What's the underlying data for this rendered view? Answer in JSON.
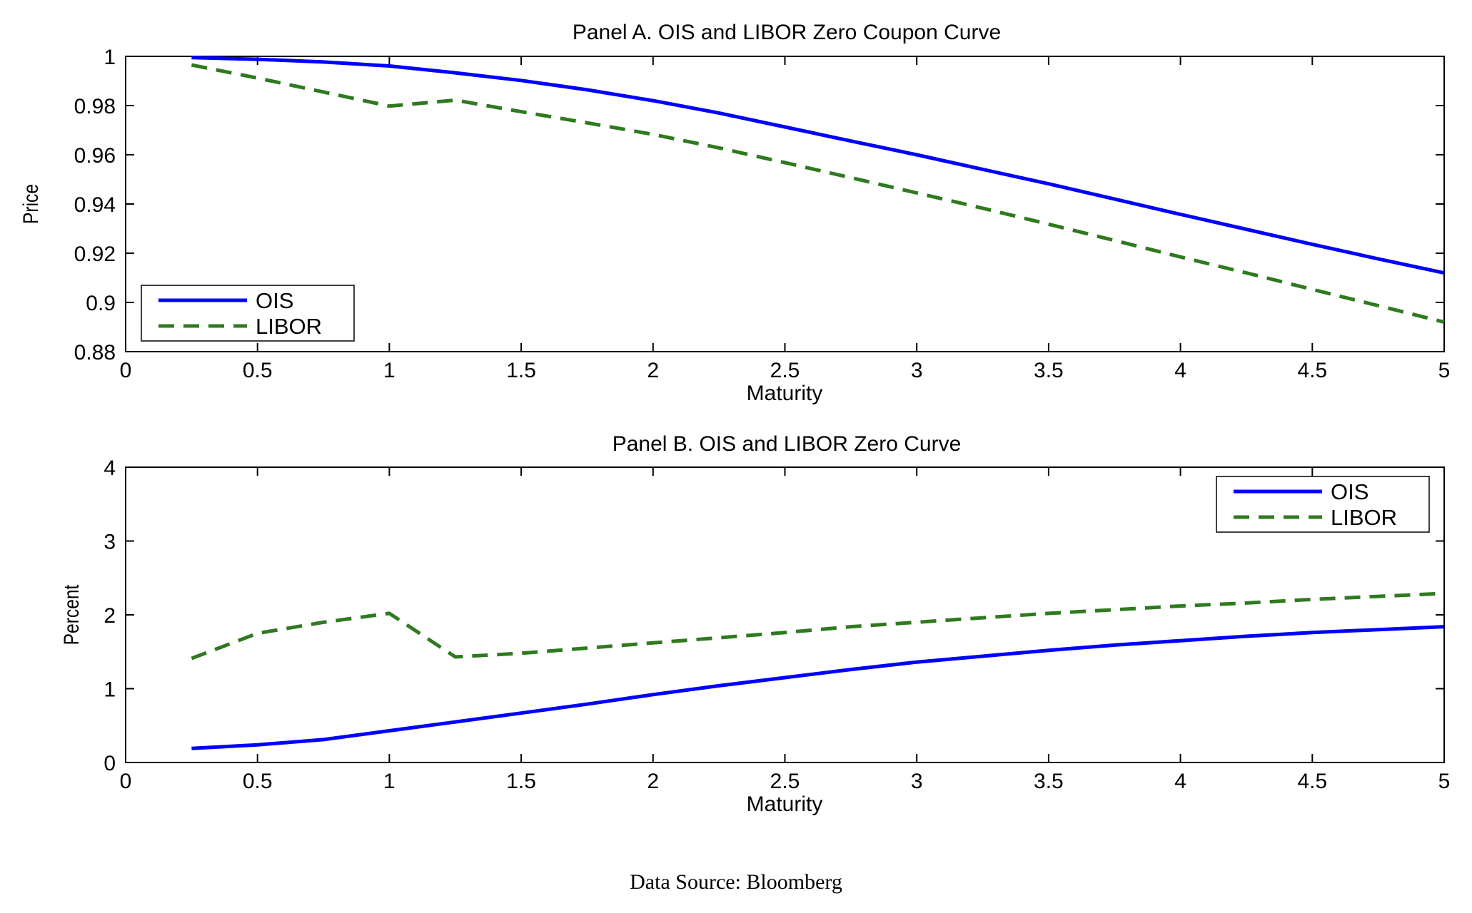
{
  "colors": {
    "ois": "#0000ff",
    "libor": "#2f7a1f"
  },
  "source_note": "Data Source: Bloomberg",
  "chart_data": [
    {
      "type": "line",
      "title": "Panel A. OIS and LIBOR Zero Coupon Curve",
      "xlabel": "Maturity",
      "ylabel": "Price",
      "xlim": [
        0,
        5
      ],
      "ylim": [
        0.88,
        1
      ],
      "xticks": [
        0,
        0.5,
        1,
        1.5,
        2,
        2.5,
        3,
        3.5,
        4,
        4.5,
        5
      ],
      "xtick_labels": [
        "0",
        "0.5",
        "1",
        "1.5",
        "2",
        "2.5",
        "3",
        "3.5",
        "4",
        "4.5",
        "5"
      ],
      "yticks": [
        0.88,
        0.9,
        0.92,
        0.94,
        0.96,
        0.98,
        1
      ],
      "ytick_labels": [
        "0.88",
        "0.9",
        "0.92",
        "0.94",
        "0.96",
        "0.98",
        "1"
      ],
      "legend_placement": "bottom-left",
      "grid": false,
      "series": [
        {
          "name": "OIS",
          "style": "solid",
          "x": [
            0.25,
            0.5,
            0.75,
            1,
            1.25,
            1.5,
            1.75,
            2,
            2.25,
            2.5,
            2.75,
            3,
            3.25,
            3.5,
            3.75,
            4,
            4.25,
            4.5,
            4.75,
            5
          ],
          "values": [
            0.9995,
            0.9988,
            0.9977,
            0.9961,
            0.9933,
            0.9902,
            0.9864,
            0.982,
            0.977,
            0.9713,
            0.9656,
            0.96,
            0.9541,
            0.9482,
            0.942,
            0.9358,
            0.9297,
            0.9236,
            0.9177,
            0.912
          ]
        },
        {
          "name": "LIBOR",
          "style": "dashed",
          "x": [
            0.25,
            0.5,
            0.75,
            1,
            1.25,
            1.5,
            1.75,
            2,
            2.25,
            2.5,
            2.75,
            3,
            3.25,
            3.5,
            3.75,
            4,
            4.25,
            4.5,
            4.75,
            5
          ],
          "values": [
            0.9965,
            0.9912,
            0.9855,
            0.9798,
            0.9822,
            0.9775,
            0.973,
            0.9683,
            0.9628,
            0.9568,
            0.9507,
            0.9445,
            0.9383,
            0.9318,
            0.9252,
            0.9185,
            0.912,
            0.9053,
            0.8987,
            0.892
          ]
        }
      ]
    },
    {
      "type": "line",
      "title": "Panel B. OIS and LIBOR Zero Curve",
      "xlabel": "Maturity",
      "ylabel": "Percent",
      "xlim": [
        0,
        5
      ],
      "ylim": [
        0,
        4
      ],
      "xticks": [
        0,
        0.5,
        1,
        1.5,
        2,
        2.5,
        3,
        3.5,
        4,
        4.5,
        5
      ],
      "xtick_labels": [
        "0",
        "0.5",
        "1",
        "1.5",
        "2",
        "2.5",
        "3",
        "3.5",
        "4",
        "4.5",
        "5"
      ],
      "yticks": [
        0,
        1,
        2,
        3,
        4
      ],
      "ytick_labels": [
        "0",
        "1",
        "2",
        "3",
        "4"
      ],
      "legend_placement": "top-right",
      "grid": false,
      "series": [
        {
          "name": "OIS",
          "style": "solid",
          "x": [
            0.25,
            0.5,
            0.75,
            1,
            1.25,
            1.5,
            1.75,
            2,
            2.25,
            2.5,
            2.75,
            3,
            3.25,
            3.5,
            3.75,
            4,
            4.25,
            4.5,
            4.75,
            5
          ],
          "values": [
            0.19,
            0.24,
            0.31,
            0.43,
            0.55,
            0.67,
            0.79,
            0.92,
            1.04,
            1.15,
            1.26,
            1.36,
            1.44,
            1.52,
            1.59,
            1.65,
            1.71,
            1.76,
            1.8,
            1.84
          ]
        },
        {
          "name": "LIBOR",
          "style": "dashed",
          "x": [
            0.25,
            0.5,
            0.75,
            1,
            1.25,
            1.5,
            1.75,
            2,
            2.25,
            2.5,
            2.75,
            3,
            3.25,
            3.5,
            3.75,
            4,
            4.25,
            4.5,
            4.75,
            5
          ],
          "values": [
            1.41,
            1.75,
            1.9,
            2.02,
            1.43,
            1.48,
            1.55,
            1.62,
            1.69,
            1.76,
            1.84,
            1.9,
            1.96,
            2.02,
            2.07,
            2.12,
            2.16,
            2.21,
            2.25,
            2.29
          ]
        }
      ]
    }
  ]
}
